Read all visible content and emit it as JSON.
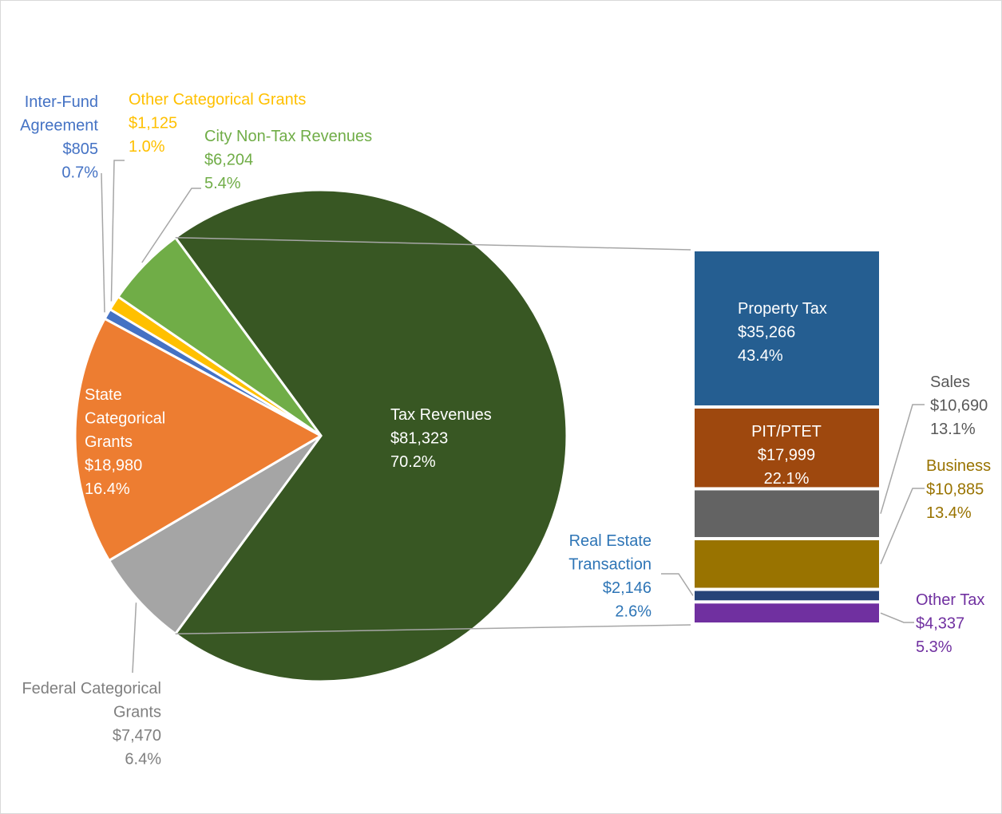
{
  "chart_data": {
    "type": "pie",
    "title": "",
    "colors": {
      "leader_line": "#a6a6a6",
      "slice_border": "#ffffff"
    },
    "pie": {
      "slices": [
        {
          "key": "tax",
          "name": "Tax Revenues",
          "value": 81323,
          "amount": "$81,323",
          "percent": "70.2%",
          "color": "#385723",
          "label_color": "#ffffff",
          "label_lines": [
            "Tax Revenues"
          ]
        },
        {
          "key": "federal",
          "name": "Federal Categorical Grants",
          "value": 7470,
          "amount": "$7,470",
          "percent": "6.4%",
          "color": "#a5a5a5",
          "label_color": "#7f7f7f",
          "label_lines": [
            "Federal Categorical",
            "Grants"
          ]
        },
        {
          "key": "state",
          "name": "State Categorical Grants",
          "value": 18980,
          "amount": "$18,980",
          "percent": "16.4%",
          "color": "#ed7d31",
          "label_color": "#ffffff",
          "label_lines": [
            "State",
            "Categorical",
            "Grants"
          ]
        },
        {
          "key": "interfund",
          "name": "Inter-Fund Agreement",
          "value": 805,
          "amount": "$805",
          "percent": "0.7%",
          "color": "#4472c4",
          "label_color": "#4472c4",
          "label_lines": [
            "Inter-Fund",
            "Agreement"
          ]
        },
        {
          "key": "othercat",
          "name": "Other Categorical Grants",
          "value": 1125,
          "amount": "$1,125",
          "percent": "1.0%",
          "color": "#ffc000",
          "label_color": "#ffc000",
          "label_lines": [
            "Other Categorical Grants"
          ]
        },
        {
          "key": "nontax",
          "name": "City Non-Tax Revenues",
          "value": 6204,
          "amount": "$6,204",
          "percent": "5.4%",
          "color": "#70ad47",
          "label_color": "#70ad47",
          "label_lines": [
            "City Non-Tax Revenues"
          ]
        }
      ]
    },
    "bar": {
      "segments": [
        {
          "key": "property",
          "name": "Property Tax",
          "value": 35266,
          "amount": "$35,266",
          "percent": "43.4%",
          "color": "#255e91",
          "label_color": "#ffffff",
          "label_lines": [
            "Property Tax"
          ]
        },
        {
          "key": "pit",
          "name": "PIT/PTET",
          "value": 17999,
          "amount": "$17,999",
          "percent": "22.1%",
          "color": "#9e480e",
          "label_color": "#ffffff",
          "label_lines": [
            "PIT/PTET"
          ]
        },
        {
          "key": "sales",
          "name": "Sales",
          "value": 10690,
          "amount": "$10,690",
          "percent": "13.1%",
          "color": "#636363",
          "label_color": "#595959",
          "label_lines": [
            "Sales"
          ]
        },
        {
          "key": "business",
          "name": "Business",
          "value": 10885,
          "amount": "$10,885",
          "percent": "13.4%",
          "color": "#997300",
          "label_color": "#997300",
          "label_lines": [
            "Business"
          ]
        },
        {
          "key": "realestate",
          "name": "Real Estate Transaction",
          "value": 2146,
          "amount": "$2,146",
          "percent": "2.6%",
          "color": "#264478",
          "label_color": "#2e75b6",
          "label_lines": [
            "Real Estate",
            "Transaction"
          ]
        },
        {
          "key": "othertax",
          "name": "Other Tax",
          "value": 4337,
          "amount": "$4,337",
          "percent": "5.3%",
          "color": "#7030a0",
          "label_color": "#7030a0",
          "label_lines": [
            "Other Tax"
          ]
        }
      ]
    }
  }
}
